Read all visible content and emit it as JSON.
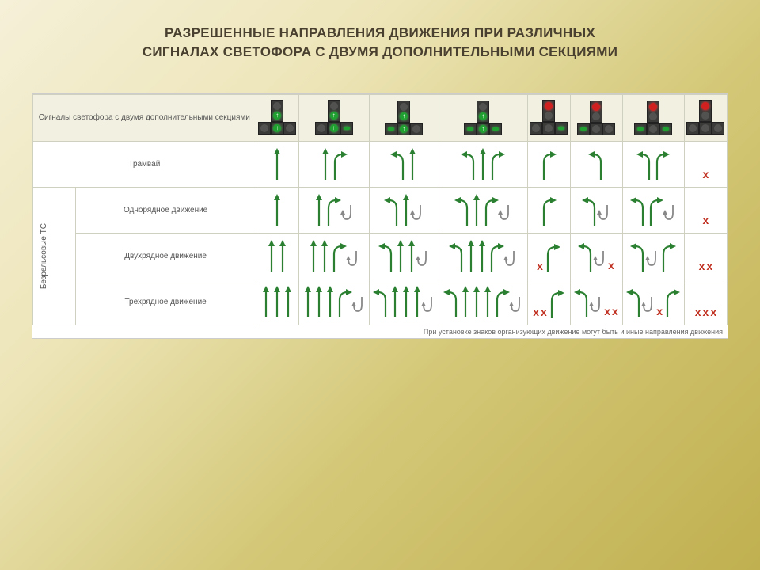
{
  "title_line1": "РАЗРЕШЕННЫЕ НАПРАВЛЕНИЯ ДВИЖЕНИЯ ПРИ РАЗЛИЧНЫХ",
  "title_line2": "СИГНАЛАХ СВЕТОФОРА С ДВУМЯ ДОПОЛНИТЕЛЬНЫМИ СЕКЦИЯМИ",
  "header_label": "Сигналы светофора с двумя дополнительными секциями",
  "row_tram": "Трамвай",
  "row_group": "Безрельсовые ТС",
  "row_single": "Однорядное движение",
  "row_double": "Двухрядное движение",
  "row_triple": "Трехрядное движение",
  "footnote": "При установке знаков организующих движение могут быть и иные направления движения",
  "colors": {
    "arrow_green": "#2a8030",
    "arrow_gray": "#888",
    "x_red": "#c03020",
    "light_red": "#d02020",
    "light_green": "#20a030",
    "light_off": "#525250",
    "light_body": "#3a3a38",
    "header_bg": "#f2f0e0",
    "border": "#d0d0c0"
  },
  "signals": [
    {
      "top": "off",
      "main": "green-up",
      "left": "off",
      "right": "off"
    },
    {
      "top": "off",
      "main": "green-up",
      "left": "off",
      "right": "green-r"
    },
    {
      "top": "off",
      "main": "green-up",
      "left": "green-l",
      "right": "off"
    },
    {
      "top": "off",
      "main": "green-up",
      "left": "green-l",
      "right": "green-r"
    },
    {
      "top": "red",
      "main": "off",
      "left": "off",
      "right": "green-r"
    },
    {
      "top": "red",
      "main": "off",
      "left": "green-l",
      "right": "off"
    },
    {
      "top": "red",
      "main": "off",
      "left": "green-l",
      "right": "green-r"
    },
    {
      "top": "red",
      "main": "off",
      "left": "off",
      "right": "off"
    }
  ],
  "rows": {
    "tram": [
      [
        "S"
      ],
      [
        "S",
        "R"
      ],
      [
        "L",
        "S"
      ],
      [
        "L",
        "S",
        "R"
      ],
      [
        "R"
      ],
      [
        "L"
      ],
      [
        "L",
        "R"
      ],
      [
        "X"
      ]
    ],
    "single": [
      [
        "S"
      ],
      [
        "S",
        "R",
        "Ug"
      ],
      [
        "L",
        "S",
        "Ug"
      ],
      [
        "L",
        "S",
        "R",
        "Ug"
      ],
      [
        "R"
      ],
      [
        "L",
        "Ug"
      ],
      [
        "L",
        "R",
        "Ug"
      ],
      [
        "X"
      ]
    ],
    "double": [
      [
        "S",
        "S"
      ],
      [
        "S",
        "S",
        "R",
        "Ug"
      ],
      [
        "L",
        "S",
        "S",
        "Ug"
      ],
      [
        "L",
        "S",
        "S",
        "R",
        "Ug"
      ],
      [
        "X",
        "R"
      ],
      [
        "L",
        "Ug",
        "X"
      ],
      [
        "L",
        "Ug",
        "R"
      ],
      [
        "X",
        "X"
      ]
    ],
    "triple": [
      [
        "S",
        "S",
        "S"
      ],
      [
        "S",
        "S",
        "S",
        "R",
        "Ug"
      ],
      [
        "L",
        "S",
        "S",
        "S",
        "Ug"
      ],
      [
        "L",
        "S",
        "S",
        "S",
        "R",
        "Ug"
      ],
      [
        "X",
        "X",
        "R"
      ],
      [
        "L",
        "Ug",
        "X",
        "X"
      ],
      [
        "L",
        "Ug",
        "X",
        "R"
      ],
      [
        "X",
        "X",
        "X"
      ]
    ]
  }
}
